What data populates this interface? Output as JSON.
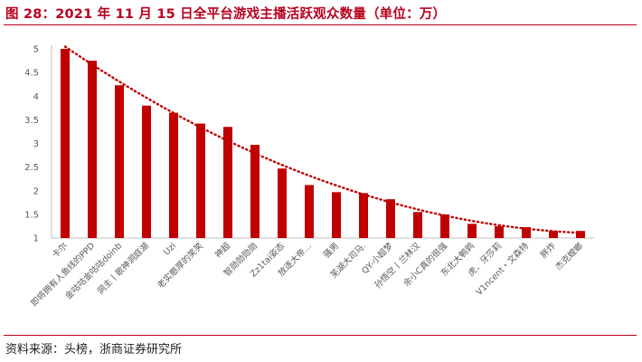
{
  "title": "图 28：2021 年 11 月 15 日全平台游戏主播活跃观众数量（单位：万）",
  "source": "资料来源：头榜，浙商证券研究所",
  "colors": {
    "bar": "#c00000",
    "trend": "#c00000",
    "title": "#b8001e"
  },
  "chart_data": {
    "type": "bar",
    "title": "图 28：2021 年 11 月 15 日全平台游戏主播活跃观众数量（单位：万）",
    "categories": [
      "卡尔",
      "即将拥有人鱼线的PPD",
      "金咕咕金咕咕doinb",
      "洞主丨歌神洞庭湖",
      "Uzi",
      "老实憨厚的笑笑",
      "神超",
      "智勋勋勋勋",
      "Zz1tai姿态",
      "放逐大帝…",
      "骚男",
      "芜湖大司马.",
      "QY-小超梦",
      "孙悟空丨兰林汉",
      "余小C真的很强",
      "东北大鹌鹑",
      "虎．牙莎莉",
      "V1ncent・文森特",
      "胖炸",
      "杰克螳螂"
    ],
    "values": [
      5.0,
      4.75,
      4.23,
      3.8,
      3.65,
      3.42,
      3.35,
      2.97,
      2.47,
      2.12,
      1.97,
      1.95,
      1.82,
      1.55,
      1.5,
      1.3,
      1.25,
      1.23,
      1.15,
      1.15
    ],
    "ylim": [
      1,
      5
    ],
    "yticks": [
      1,
      1.5,
      2,
      2.5,
      3,
      3.5,
      4,
      4.5,
      5
    ],
    "trendline": "polynomial",
    "grid": false,
    "legend": "none"
  }
}
